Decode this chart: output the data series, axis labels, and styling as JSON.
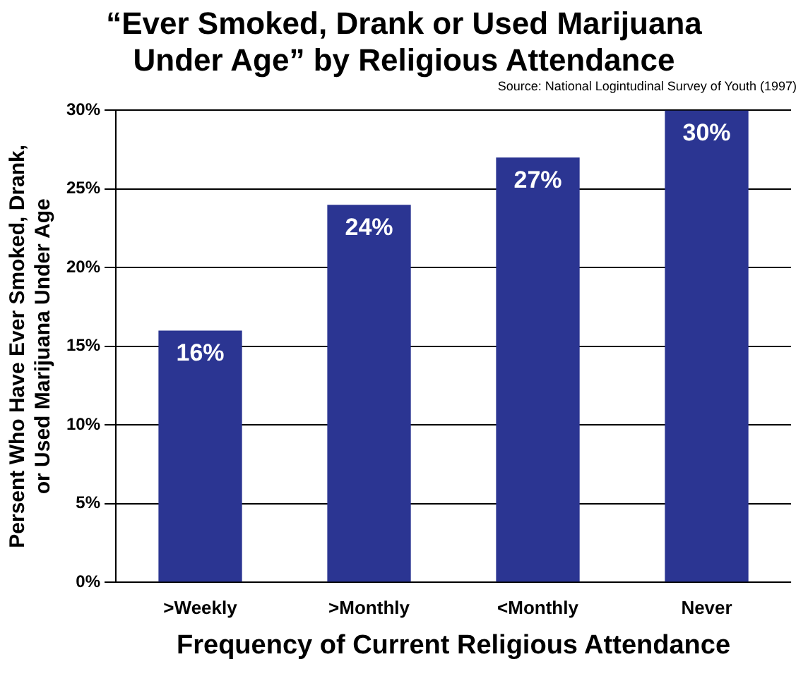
{
  "chart_data": {
    "type": "bar",
    "title": "“Ever Smoked, Drank or Used Marijuana Under Age” by Religious Attendance",
    "annotations": [
      "Source: National Logintudinal Survey of Youth (1997)"
    ],
    "xlabel": "Frequency of Current Religious Attendance",
    "ylabel": "Persent Who Have Ever Smoked, Drank, or Used Marijuana Under Age",
    "categories": [
      ">Weekly",
      ">Monthly",
      "<Monthly",
      "Never"
    ],
    "values": [
      16,
      24,
      27,
      30
    ],
    "value_labels": [
      "16%",
      "24%",
      "27%",
      "30%"
    ],
    "color": "#2b3592",
    "ylim": [
      0,
      30
    ],
    "yticks": [
      {
        "value": 0,
        "label": "0%"
      },
      {
        "value": 5,
        "label": "5%"
      },
      {
        "value": 10,
        "label": "10%"
      },
      {
        "value": 15,
        "label": "15%"
      },
      {
        "value": 20,
        "label": "20%"
      },
      {
        "value": 25,
        "label": "25%"
      },
      {
        "value": 30,
        "label": "30%"
      }
    ],
    "grid": "y",
    "legend": false
  }
}
